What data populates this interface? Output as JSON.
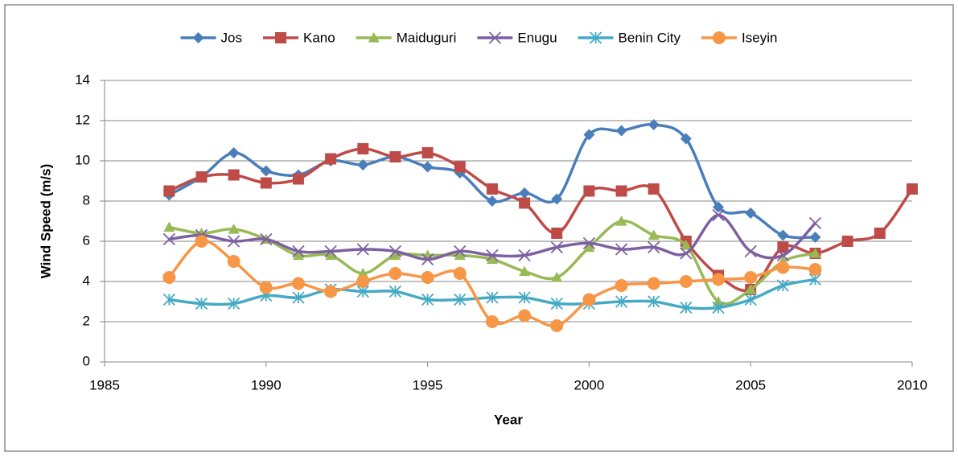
{
  "chart_data": {
    "type": "line",
    "xlabel": "Year",
    "ylabel": "Wind Speed (m/s)",
    "xlim": [
      1985,
      2010
    ],
    "xticks": [
      1985,
      1990,
      1995,
      2000,
      2005,
      2010
    ],
    "ylim": [
      0,
      14
    ],
    "yticks": [
      0,
      2,
      4,
      6,
      8,
      10,
      12,
      14
    ],
    "grid": true,
    "legend": "top",
    "series": [
      {
        "name": "Jos",
        "color": "#4a7ebb",
        "marker": "diamond",
        "x": [
          1987,
          1988,
          1989,
          1990,
          1991,
          1992,
          1993,
          1994,
          1995,
          1996,
          1997,
          1998,
          1999,
          2000,
          2001,
          2002,
          2003,
          2004,
          2005,
          2006,
          2007
        ],
        "values": [
          8.3,
          9.2,
          10.4,
          9.5,
          9.3,
          10.0,
          9.8,
          10.2,
          9.7,
          9.4,
          8.0,
          8.4,
          8.1,
          11.3,
          11.5,
          11.8,
          11.1,
          7.7,
          7.4,
          6.3,
          6.2
        ]
      },
      {
        "name": "Kano",
        "color": "#be4b48",
        "marker": "square",
        "x": [
          1987,
          1988,
          1989,
          1990,
          1991,
          1992,
          1993,
          1994,
          1995,
          1996,
          1997,
          1998,
          1999,
          2000,
          2001,
          2002,
          2003,
          2004,
          2005,
          2006,
          2007,
          2008,
          2009,
          2010
        ],
        "values": [
          8.5,
          9.2,
          9.3,
          8.9,
          9.1,
          10.1,
          10.6,
          10.2,
          10.4,
          9.7,
          8.6,
          7.9,
          6.4,
          8.5,
          8.5,
          8.6,
          6.0,
          4.3,
          3.6,
          5.7,
          5.4,
          6.0,
          6.4,
          8.6
        ]
      },
      {
        "name": "Maiduguri",
        "color": "#98b954",
        "marker": "triangle",
        "x": [
          1987,
          1988,
          1989,
          1990,
          1991,
          1992,
          1993,
          1994,
          1995,
          1996,
          1997,
          1998,
          1999,
          2000,
          2001,
          2002,
          2003,
          2004,
          2005,
          2006,
          2007
        ],
        "values": [
          6.7,
          6.4,
          6.6,
          6.1,
          5.3,
          5.3,
          4.4,
          5.3,
          5.3,
          5.3,
          5.1,
          4.5,
          4.2,
          5.7,
          7.0,
          6.3,
          5.8,
          3.0,
          3.6,
          5.0,
          5.4
        ]
      },
      {
        "name": "Enugu",
        "color": "#7d60a0",
        "marker": "x",
        "x": [
          1987,
          1988,
          1989,
          1990,
          1991,
          1992,
          1993,
          1994,
          1995,
          1996,
          1997,
          1998,
          1999,
          2000,
          2001,
          2002,
          2003,
          2004,
          2005,
          2006,
          2007
        ],
        "values": [
          6.1,
          6.3,
          6.0,
          6.1,
          5.5,
          5.5,
          5.6,
          5.5,
          5.1,
          5.5,
          5.3,
          5.3,
          5.7,
          5.9,
          5.6,
          5.7,
          5.4,
          7.3,
          5.5,
          5.3,
          6.9
        ]
      },
      {
        "name": "Benin City",
        "color": "#46aac5",
        "marker": "star",
        "x": [
          1987,
          1988,
          1989,
          1990,
          1991,
          1992,
          1993,
          1994,
          1995,
          1996,
          1997,
          1998,
          1999,
          2000,
          2001,
          2002,
          2003,
          2004,
          2005,
          2006,
          2007
        ],
        "values": [
          3.1,
          2.9,
          2.9,
          3.3,
          3.2,
          3.6,
          3.5,
          3.5,
          3.1,
          3.1,
          3.2,
          3.2,
          2.9,
          2.9,
          3.0,
          3.0,
          2.7,
          2.7,
          3.1,
          3.8,
          4.1
        ]
      },
      {
        "name": "Iseyin",
        "color": "#f79646",
        "marker": "circle",
        "x": [
          1987,
          1988,
          1989,
          1990,
          1991,
          1992,
          1993,
          1994,
          1995,
          1996,
          1997,
          1998,
          1999,
          2000,
          2001,
          2002,
          2003,
          2004,
          2005,
          2006,
          2007
        ],
        "values": [
          4.2,
          6.0,
          5.0,
          3.7,
          3.9,
          3.5,
          4.0,
          4.4,
          4.2,
          4.4,
          2.0,
          2.3,
          1.8,
          3.1,
          3.8,
          3.9,
          4.0,
          4.1,
          4.2,
          4.7,
          4.6
        ]
      }
    ]
  }
}
